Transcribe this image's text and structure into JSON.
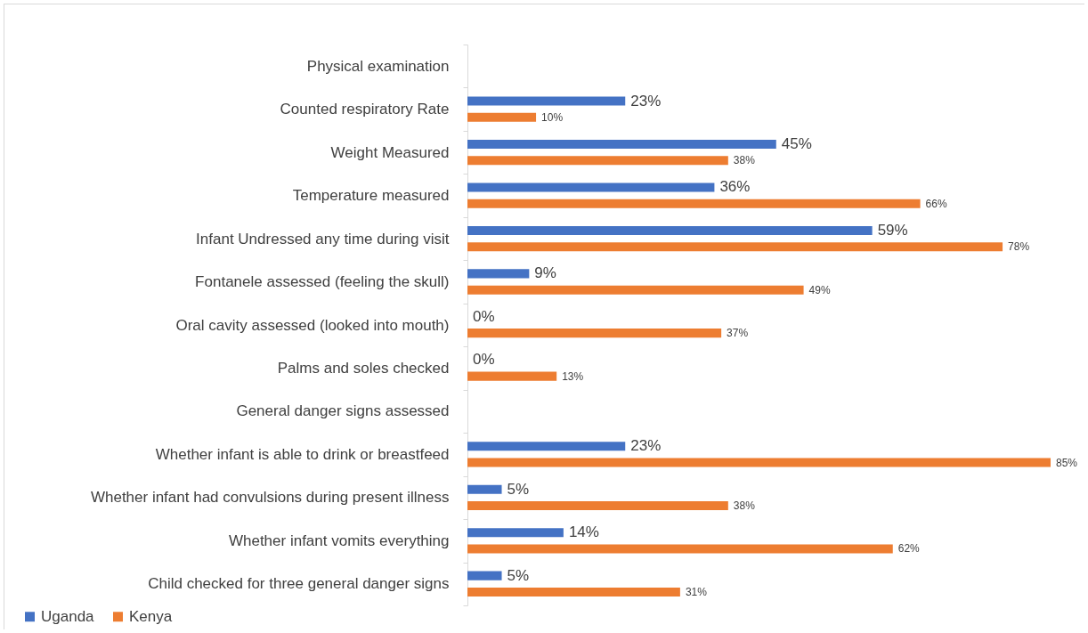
{
  "chart_data": {
    "type": "bar",
    "orientation": "horizontal",
    "legend": "bottom left",
    "categories": [
      "Physical examination",
      "Counted respiratory Rate ",
      "Weight Measured",
      "Temperature measured",
      "Infant Undressed any time during visit ",
      "Fontanele assessed (feeling the skull)",
      "Oral cavity assessed (looked into mouth)",
      "Palms and soles checked",
      "General danger signs assessed",
      "Whether infant is able to drink or breastfeed ",
      "Whether infant had convulsions during present illness",
      "Whether infant vomits everything",
      "Child checked for three general danger signs"
    ],
    "series": [
      {
        "name": "Uganda",
        "color": "#4472c4",
        "values": [
          null,
          23,
          45,
          36,
          59,
          9,
          0,
          0,
          null,
          23,
          5,
          14,
          5
        ],
        "value_labels": [
          null,
          "23%",
          "45%",
          "36%",
          "59%",
          "9%",
          "0%",
          "0%",
          null,
          "23%",
          "5%",
          "14%",
          "5%"
        ]
      },
      {
        "name": "Kenya",
        "color": "#ed7d31",
        "values": [
          null,
          10,
          38,
          66,
          78,
          49,
          37,
          13,
          null,
          85,
          38,
          62,
          31
        ],
        "value_labels": [
          null,
          "10%",
          "38%",
          "66%",
          "78%",
          "49%",
          "37%",
          "13%",
          null,
          "85%",
          "38%",
          "62%",
          "31%"
        ]
      }
    ]
  }
}
